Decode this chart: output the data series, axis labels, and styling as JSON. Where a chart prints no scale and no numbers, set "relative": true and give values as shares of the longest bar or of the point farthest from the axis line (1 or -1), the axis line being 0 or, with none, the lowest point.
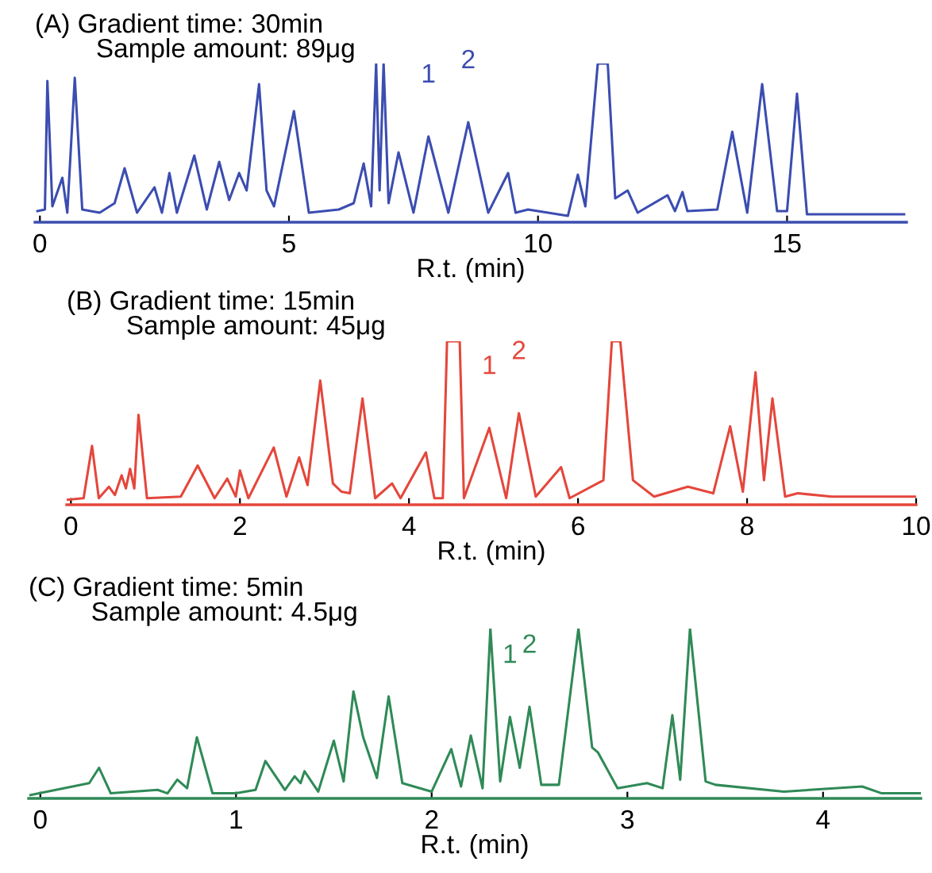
{
  "chart_data": [
    {
      "type": "line",
      "title": "(A) Gradient time: 30min",
      "subtitle": "Sample amount: 89μg",
      "xlabel": "R.t. (min)",
      "relative": true,
      "xlim": [
        -0.1,
        17.4
      ],
      "xticks": [
        0,
        5,
        10,
        15
      ],
      "grid": false,
      "marker": "none",
      "line_style": "solid",
      "series": [
        {
          "color": "#3b4db0",
          "x": [
            -0.05,
            0.1,
            0.15,
            0.25,
            0.45,
            0.55,
            0.7,
            0.85,
            1.2,
            1.5,
            1.7,
            1.95,
            2.3,
            2.45,
            2.6,
            2.75,
            3.1,
            3.35,
            3.6,
            3.8,
            4.0,
            4.15,
            4.4,
            4.55,
            4.7,
            5.1,
            5.4,
            6.0,
            6.3,
            6.5,
            6.65,
            6.75,
            6.82,
            6.9,
            7.0,
            7.2,
            7.5,
            7.8,
            8.2,
            8.6,
            9.0,
            9.4,
            9.55,
            9.8,
            10.6,
            10.8,
            10.95,
            11.2,
            11.4,
            11.55,
            11.8,
            12.0,
            12.6,
            12.75,
            12.9,
            13.0,
            13.6,
            13.9,
            14.2,
            14.5,
            14.8,
            15.0,
            15.2,
            15.4,
            16.5,
            17.35
          ],
          "values": [
            0.07,
            0.08,
            0.89,
            0.1,
            0.28,
            0.06,
            0.91,
            0.08,
            0.06,
            0.12,
            0.34,
            0.06,
            0.22,
            0.06,
            0.31,
            0.06,
            0.42,
            0.08,
            0.38,
            0.14,
            0.31,
            0.2,
            0.87,
            0.2,
            0.1,
            0.7,
            0.06,
            0.08,
            0.12,
            0.37,
            0.1,
            1.0,
            0.2,
            1.0,
            0.12,
            0.44,
            0.06,
            0.54,
            0.06,
            0.63,
            0.06,
            0.31,
            0.06,
            0.08,
            0.04,
            0.3,
            0.1,
            1.0,
            1.0,
            0.15,
            0.2,
            0.06,
            0.17,
            0.07,
            0.19,
            0.07,
            0.08,
            0.57,
            0.06,
            0.87,
            0.07,
            0.07,
            0.81,
            0.05,
            0.05,
            0.05
          ]
        }
      ],
      "annotations": [
        {
          "text": "1",
          "x": 7.8,
          "y": 0.54
        },
        {
          "text": "2",
          "x": 8.6,
          "y": 0.63
        }
      ]
    },
    {
      "type": "line",
      "title": "(B) Gradient time: 15min",
      "subtitle": "Sample amount: 45μg",
      "xlabel": "R.t. (min)",
      "relative": true,
      "xlim": [
        -0.05,
        10
      ],
      "xticks": [
        0,
        2,
        4,
        6,
        8,
        10
      ],
      "grid": false,
      "marker": "none",
      "line_style": "solid",
      "series": [
        {
          "color": "#e4473c",
          "x": [
            -0.05,
            0.15,
            0.25,
            0.33,
            0.45,
            0.52,
            0.6,
            0.65,
            0.7,
            0.75,
            0.8,
            0.9,
            1.3,
            1.5,
            1.7,
            1.85,
            1.95,
            2.0,
            2.1,
            2.4,
            2.55,
            2.7,
            2.8,
            2.95,
            3.1,
            3.2,
            3.3,
            3.45,
            3.6,
            3.8,
            3.9,
            4.2,
            4.3,
            4.4,
            4.45,
            4.6,
            4.65,
            4.95,
            5.15,
            5.3,
            5.5,
            5.8,
            5.9,
            6.3,
            6.4,
            6.5,
            6.65,
            6.9,
            7.3,
            7.6,
            7.8,
            7.95,
            8.1,
            8.2,
            8.3,
            8.45,
            8.6,
            9.0,
            10.0
          ],
          "values": [
            0.03,
            0.04,
            0.36,
            0.04,
            0.11,
            0.06,
            0.18,
            0.1,
            0.22,
            0.1,
            0.55,
            0.04,
            0.05,
            0.24,
            0.04,
            0.16,
            0.05,
            0.21,
            0.04,
            0.35,
            0.05,
            0.29,
            0.12,
            0.76,
            0.13,
            0.08,
            0.07,
            0.65,
            0.04,
            0.13,
            0.04,
            0.32,
            0.04,
            0.04,
            1.0,
            1.0,
            0.04,
            0.47,
            0.04,
            0.56,
            0.05,
            0.23,
            0.04,
            0.15,
            1.0,
            1.0,
            0.15,
            0.05,
            0.11,
            0.07,
            0.48,
            0.08,
            0.81,
            0.15,
            0.65,
            0.05,
            0.07,
            0.05,
            0.05
          ]
        }
      ],
      "annotations": [
        {
          "text": "1",
          "x": 4.95,
          "y": 0.47
        },
        {
          "text": "2",
          "x": 5.3,
          "y": 0.56
        }
      ]
    },
    {
      "type": "line",
      "title": "(C) Gradient time: 5min",
      "subtitle": "Sample amount: 4.5μg",
      "xlabel": "R.t. (min)",
      "relative": true,
      "xlim": [
        -0.06,
        4.5
      ],
      "xticks": [
        0,
        1,
        2,
        3,
        4
      ],
      "grid": false,
      "marker": "none",
      "line_style": "solid",
      "series": [
        {
          "color": "#2f8a57",
          "x": [
            -0.05,
            0.25,
            0.3,
            0.36,
            0.6,
            0.65,
            0.7,
            0.75,
            0.8,
            0.88,
            1.0,
            1.1,
            1.15,
            1.25,
            1.3,
            1.33,
            1.35,
            1.42,
            1.5,
            1.55,
            1.6,
            1.65,
            1.72,
            1.78,
            1.85,
            2.0,
            2.1,
            2.15,
            2.2,
            2.26,
            2.3,
            2.35,
            2.4,
            2.45,
            2.5,
            2.56,
            2.65,
            2.75,
            2.82,
            2.85,
            2.95,
            3.1,
            3.18,
            3.23,
            3.27,
            3.32,
            3.4,
            3.45,
            3.8,
            4.2,
            4.3,
            4.5
          ],
          "values": [
            0.02,
            0.09,
            0.18,
            0.03,
            0.05,
            0.03,
            0.11,
            0.06,
            0.36,
            0.03,
            0.03,
            0.05,
            0.22,
            0.05,
            0.13,
            0.09,
            0.16,
            0.04,
            0.34,
            0.1,
            0.63,
            0.36,
            0.12,
            0.6,
            0.09,
            0.04,
            0.29,
            0.07,
            0.37,
            0.06,
            1.0,
            0.1,
            0.48,
            0.18,
            0.54,
            0.08,
            0.08,
            1.0,
            0.3,
            0.27,
            0.06,
            0.09,
            0.06,
            0.49,
            0.11,
            1.0,
            0.1,
            0.08,
            0.04,
            0.07,
            0.03,
            0.03
          ]
        }
      ],
      "annotations": [
        {
          "text": "1",
          "x": 2.4,
          "y": 0.48
        },
        {
          "text": "2",
          "x": 2.5,
          "y": 0.54
        }
      ]
    }
  ]
}
